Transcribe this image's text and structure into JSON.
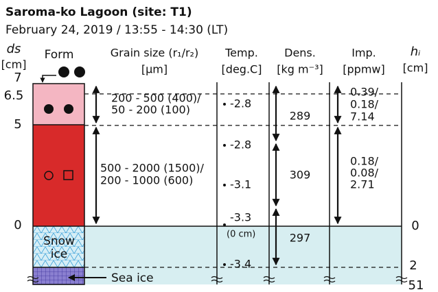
{
  "header": {
    "title": "Saroma-ko Lagoon (site: T1)",
    "subtitle": "February 24, 2019 / 13:55 - 14:30 (LT)"
  },
  "columns": {
    "depth": {
      "symbol": "ds",
      "unit": "[cm]"
    },
    "form": "Form",
    "grain": {
      "label": "Grain size (r₁/r₂)",
      "unit": "[μm]"
    },
    "temp": {
      "label": "Temp.",
      "unit": "[deg.C]"
    },
    "density": {
      "label": "Dens.",
      "unit": "[kg m⁻³]"
    },
    "impurity": {
      "label": "Imp.",
      "unit": "[ppmw]"
    },
    "thickness": {
      "symbol": "hᵢ",
      "unit": "[cm]"
    }
  },
  "depth_labels": [
    "7",
    "6.5",
    "5",
    "0"
  ],
  "thickness_labels": [
    "0",
    "2",
    "51"
  ],
  "layers": [
    {
      "grain": [
        "200 - 500 (400)/",
        "50 - 200 (100)"
      ],
      "temp": [
        "-2.8"
      ],
      "density": "289",
      "impurity": [
        "0.39/",
        "0.18/",
        "7.14"
      ]
    },
    {
      "grain": [
        "500 - 2000 (1500)/",
        "200 - 1000 (600)"
      ],
      "temp": [
        "-2.8",
        "-3.1",
        "-3.3"
      ],
      "temp_note": "(0 cm)",
      "density": "309",
      "impurity": [
        "0.18/",
        "0.08/",
        "2.71"
      ]
    },
    {
      "form": [
        "Snow",
        "ice"
      ],
      "temp": [
        "-3.4"
      ],
      "density": "297"
    },
    {
      "form": "Sea ice"
    }
  ]
}
